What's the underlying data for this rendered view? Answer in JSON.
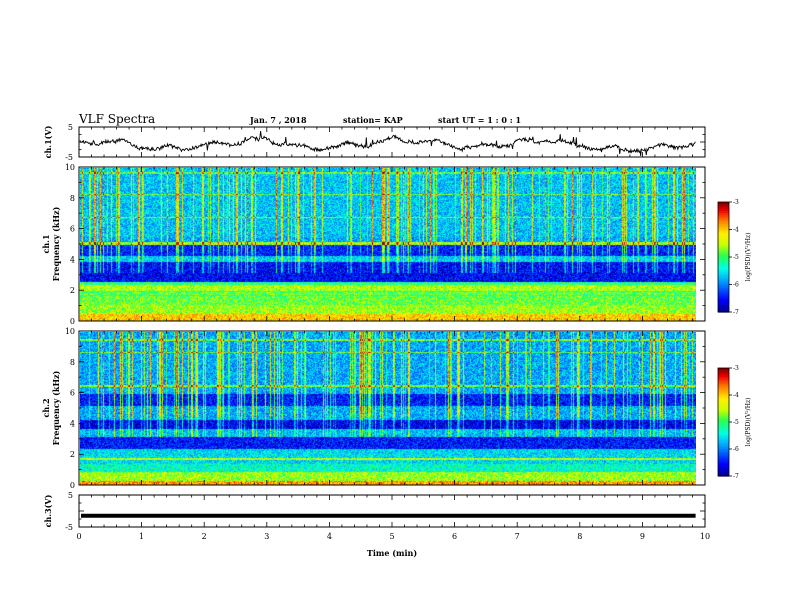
{
  "header": {
    "title": "VLF Spectra",
    "date": "Jan. 7 , 2018",
    "station": "station= KAP",
    "start": "start UT = 1 : 0 : 1"
  },
  "chart_data": [
    {
      "type": "line",
      "name": "ch1-waveform",
      "ylabel": "ch.1(V)",
      "xlim": [
        0,
        10
      ],
      "ylim": [
        -5,
        5
      ],
      "yticks": [
        "5",
        "-5"
      ],
      "color": "#000000"
    },
    {
      "type": "heatmap",
      "name": "ch1-spectrogram",
      "ylabel": "ch.1\nFrequency (kHz)",
      "xlim": [
        0,
        9.85
      ],
      "ylim": [
        0,
        10
      ],
      "yticks": [
        "0",
        "2",
        "4",
        "6",
        "8",
        "10"
      ],
      "colorbar": {
        "label": "log(PSD)(V²/Hz)",
        "ticks": [
          "-3",
          "-4",
          "-5",
          "-6",
          "-7"
        ],
        "range": [
          -7,
          -3
        ]
      }
    },
    {
      "type": "heatmap",
      "name": "ch2-spectrogram",
      "ylabel": "ch.2\nFrequency (kHz)",
      "xlim": [
        0,
        9.85
      ],
      "ylim": [
        0,
        10
      ],
      "yticks": [
        "0",
        "2",
        "4",
        "6",
        "8",
        "10"
      ],
      "colorbar": {
        "label": "log(PSD)(V²/Hz)",
        "ticks": [
          "-3",
          "-4",
          "-5",
          "-6",
          "-7"
        ],
        "range": [
          -7,
          -3
        ]
      }
    },
    {
      "type": "line",
      "name": "ch3-waveform",
      "ylabel": "ch.3(V)",
      "xlim": [
        0,
        10
      ],
      "ylim": [
        -5,
        5
      ],
      "yticks": [
        "5",
        "-5"
      ],
      "values_constant": -1.5,
      "color": "#000000"
    }
  ],
  "xaxis": {
    "label": "Time (min)",
    "ticks": [
      "0",
      "1",
      "2",
      "3",
      "4",
      "5",
      "6",
      "7",
      "8",
      "9",
      "10"
    ],
    "range": [
      0,
      10
    ]
  }
}
